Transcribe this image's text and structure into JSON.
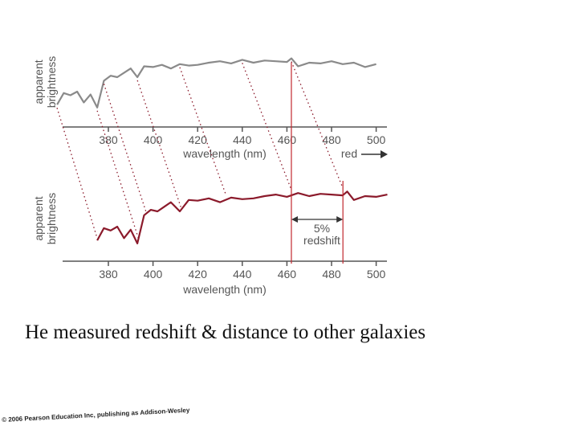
{
  "chart_data": [
    {
      "type": "line",
      "ylabel": [
        "apparent",
        "brightness"
      ],
      "xlabel": "wavelength (nm)",
      "xlim": [
        355,
        505
      ],
      "x_ticks": [
        380,
        400,
        420,
        440,
        460,
        480,
        500
      ],
      "annotation": "red",
      "series": [
        {
          "color": "#8a8a8a",
          "x": [
            357,
            360,
            363,
            366,
            369,
            372,
            375,
            378,
            381,
            384,
            387,
            390,
            393,
            396,
            400,
            404,
            408,
            412,
            416,
            420,
            425,
            430,
            435,
            440,
            445,
            450,
            455,
            460,
            462,
            465,
            470,
            475,
            480,
            485,
            490,
            495,
            500
          ],
          "y": [
            0.22,
            0.38,
            0.35,
            0.4,
            0.25,
            0.36,
            0.18,
            0.55,
            0.62,
            0.6,
            0.66,
            0.72,
            0.6,
            0.75,
            0.74,
            0.77,
            0.72,
            0.78,
            0.76,
            0.77,
            0.8,
            0.82,
            0.79,
            0.84,
            0.8,
            0.83,
            0.82,
            0.81,
            0.86,
            0.75,
            0.8,
            0.79,
            0.82,
            0.78,
            0.8,
            0.74,
            0.78
          ]
        }
      ]
    },
    {
      "type": "line",
      "ylabel": [
        "apparent",
        "brightness"
      ],
      "xlabel": "wavelength (nm)",
      "xlim": [
        355,
        505
      ],
      "x_ticks": [
        380,
        400,
        420,
        440,
        460,
        480,
        500
      ],
      "annotation": [
        "5%",
        "redshift"
      ],
      "series": [
        {
          "color": "#8b1a2b",
          "x": [
            375,
            378,
            381,
            384,
            387,
            390,
            393,
            396,
            399,
            402,
            405,
            408,
            412,
            416,
            420,
            425,
            430,
            435,
            440,
            445,
            450,
            455,
            460,
            465,
            470,
            475,
            480,
            485,
            487,
            490,
            495,
            500,
            505
          ],
          "y": [
            0.22,
            0.38,
            0.35,
            0.4,
            0.25,
            0.36,
            0.18,
            0.55,
            0.62,
            0.6,
            0.66,
            0.72,
            0.6,
            0.75,
            0.74,
            0.77,
            0.72,
            0.78,
            0.76,
            0.77,
            0.8,
            0.82,
            0.79,
            0.84,
            0.8,
            0.83,
            0.82,
            0.81,
            0.86,
            0.75,
            0.8,
            0.79,
            0.82
          ]
        }
      ]
    }
  ],
  "caption": "He measured redshift & distance to other galaxies",
  "copyright": "© 2006 Pearson Education Inc, publishing as Addison-Wesley",
  "colors": {
    "gray_spectrum": "#8a8a8a",
    "red_spectrum": "#8b1a2b",
    "guide_line": "#c1272d",
    "axis": "#555555"
  }
}
